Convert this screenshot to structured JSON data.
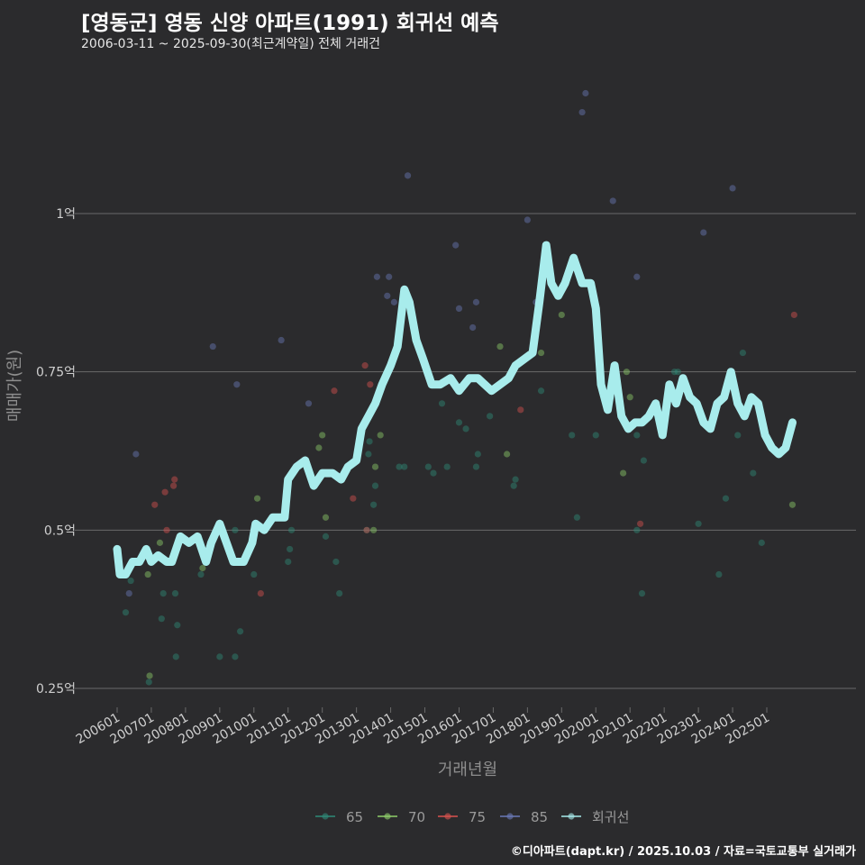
{
  "title": "[영동군] 영동 신양 아파트(1991) 회귀선 예측",
  "subtitle": "2006-03-11 ~ 2025-09-30(최근계약일) 전체 거래건",
  "credit": "©디아파트(dapt.kr) / 2025.10.03 / 자료=국토교통부 실거래가",
  "chart_data": {
    "type": "scatter",
    "xlabel": "거래년월",
    "ylabel": "매매가(원)",
    "xlim": [
      2005.75,
      2027.0
    ],
    "ylim": [
      0.22,
      1.3
    ],
    "yticks": [
      {
        "value": 0.25,
        "label": "0.25억"
      },
      {
        "value": 0.5,
        "label": "0.5억"
      },
      {
        "value": 0.75,
        "label": "0.75억"
      },
      {
        "value": 1.0,
        "label": "1억"
      }
    ],
    "xticks": [
      {
        "value": 2006.0,
        "label": "200601"
      },
      {
        "value": 2007.0,
        "label": "200701"
      },
      {
        "value": 2008.0,
        "label": "200801"
      },
      {
        "value": 2009.0,
        "label": "200901"
      },
      {
        "value": 2010.0,
        "label": "201001"
      },
      {
        "value": 2011.0,
        "label": "201101"
      },
      {
        "value": 2012.0,
        "label": "201201"
      },
      {
        "value": 2013.0,
        "label": "201301"
      },
      {
        "value": 2014.0,
        "label": "201401"
      },
      {
        "value": 2015.0,
        "label": "201501"
      },
      {
        "value": 2016.0,
        "label": "201601"
      },
      {
        "value": 2017.0,
        "label": "201701"
      },
      {
        "value": 2018.0,
        "label": "201801"
      },
      {
        "value": 2019.0,
        "label": "201901"
      },
      {
        "value": 2020.0,
        "label": "202001"
      },
      {
        "value": 2021.0,
        "label": "202101"
      },
      {
        "value": 2022.0,
        "label": "202201"
      },
      {
        "value": 2023.0,
        "label": "202301"
      },
      {
        "value": 2024.0,
        "label": "202401"
      },
      {
        "value": 2025.0,
        "label": "202501"
      }
    ],
    "legend": [
      {
        "name": "65",
        "color": "#2e8b78"
      },
      {
        "name": "70",
        "color": "#8fcf6a"
      },
      {
        "name": "75",
        "color": "#d9534f"
      },
      {
        "name": "85",
        "color": "#6a79b8"
      },
      {
        "name": "회귀선",
        "color": "#a8ecec"
      }
    ],
    "series": [
      {
        "name": "65",
        "color": "#2e8b78",
        "points": [
          [
            2006.25,
            0.37
          ],
          [
            2006.4,
            0.42
          ],
          [
            2006.93,
            0.26
          ],
          [
            2007.3,
            0.36
          ],
          [
            2007.35,
            0.4
          ],
          [
            2007.7,
            0.4
          ],
          [
            2007.72,
            0.3
          ],
          [
            2007.76,
            0.35
          ],
          [
            2008.45,
            0.43
          ],
          [
            2009.0,
            0.3
          ],
          [
            2009.45,
            0.3
          ],
          [
            2009.45,
            0.5
          ],
          [
            2009.6,
            0.34
          ],
          [
            2010.0,
            0.43
          ],
          [
            2011.0,
            0.45
          ],
          [
            2011.05,
            0.47
          ],
          [
            2011.1,
            0.5
          ],
          [
            2012.1,
            0.49
          ],
          [
            2012.4,
            0.45
          ],
          [
            2012.5,
            0.4
          ],
          [
            2013.3,
            0.5
          ],
          [
            2013.35,
            0.62
          ],
          [
            2013.38,
            0.64
          ],
          [
            2013.5,
            0.54
          ],
          [
            2013.55,
            0.57
          ],
          [
            2014.25,
            0.6
          ],
          [
            2014.4,
            0.6
          ],
          [
            2015.1,
            0.6
          ],
          [
            2015.25,
            0.59
          ],
          [
            2015.5,
            0.7
          ],
          [
            2015.65,
            0.6
          ],
          [
            2016.0,
            0.67
          ],
          [
            2016.2,
            0.66
          ],
          [
            2016.5,
            0.6
          ],
          [
            2016.55,
            0.62
          ],
          [
            2016.9,
            0.68
          ],
          [
            2017.6,
            0.57
          ],
          [
            2017.65,
            0.58
          ],
          [
            2018.4,
            0.72
          ],
          [
            2019.3,
            0.65
          ],
          [
            2019.45,
            0.52
          ],
          [
            2020.0,
            0.65
          ],
          [
            2021.2,
            0.5
          ],
          [
            2021.2,
            0.65
          ],
          [
            2021.4,
            0.61
          ],
          [
            2021.35,
            0.4
          ],
          [
            2022.3,
            0.75
          ],
          [
            2022.4,
            0.75
          ],
          [
            2023.0,
            0.51
          ],
          [
            2023.6,
            0.43
          ],
          [
            2023.8,
            0.55
          ],
          [
            2024.15,
            0.65
          ],
          [
            2024.3,
            0.78
          ],
          [
            2024.6,
            0.59
          ],
          [
            2024.85,
            0.48
          ]
        ]
      },
      {
        "name": "70",
        "color": "#8fcf6a",
        "points": [
          [
            2006.9,
            0.43
          ],
          [
            2006.95,
            0.27
          ],
          [
            2007.25,
            0.48
          ],
          [
            2008.5,
            0.44
          ],
          [
            2010.1,
            0.55
          ],
          [
            2011.9,
            0.63
          ],
          [
            2012.0,
            0.65
          ],
          [
            2012.1,
            0.52
          ],
          [
            2013.5,
            0.5
          ],
          [
            2013.55,
            0.6
          ],
          [
            2013.7,
            0.65
          ],
          [
            2017.2,
            0.79
          ],
          [
            2017.4,
            0.62
          ],
          [
            2018.4,
            0.78
          ],
          [
            2019.0,
            0.84
          ],
          [
            2020.8,
            0.59
          ],
          [
            2020.9,
            0.75
          ],
          [
            2021.0,
            0.71
          ],
          [
            2025.75,
            0.54
          ]
        ]
      },
      {
        "name": "75",
        "color": "#d9534f",
        "points": [
          [
            2007.1,
            0.54
          ],
          [
            2007.4,
            0.56
          ],
          [
            2007.45,
            0.5
          ],
          [
            2007.65,
            0.57
          ],
          [
            2007.68,
            0.58
          ],
          [
            2010.2,
            0.4
          ],
          [
            2012.35,
            0.72
          ],
          [
            2012.9,
            0.55
          ],
          [
            2013.25,
            0.76
          ],
          [
            2013.3,
            0.5
          ],
          [
            2013.4,
            0.73
          ],
          [
            2017.8,
            0.69
          ],
          [
            2021.3,
            0.51
          ],
          [
            2025.8,
            0.84
          ]
        ]
      },
      {
        "name": "85",
        "color": "#6a79b8",
        "points": [
          [
            2006.35,
            0.4
          ],
          [
            2006.55,
            0.62
          ],
          [
            2008.8,
            0.79
          ],
          [
            2009.5,
            0.73
          ],
          [
            2010.8,
            0.8
          ],
          [
            2011.6,
            0.7
          ],
          [
            2013.6,
            0.9
          ],
          [
            2013.9,
            0.87
          ],
          [
            2013.95,
            0.9
          ],
          [
            2014.1,
            0.86
          ],
          [
            2014.5,
            1.06
          ],
          [
            2015.9,
            0.95
          ],
          [
            2016.0,
            0.85
          ],
          [
            2016.4,
            0.82
          ],
          [
            2016.5,
            0.86
          ],
          [
            2018.0,
            0.99
          ],
          [
            2018.25,
            0.86
          ],
          [
            2019.6,
            1.16
          ],
          [
            2019.7,
            1.19
          ],
          [
            2020.5,
            1.02
          ],
          [
            2021.2,
            0.9
          ],
          [
            2023.15,
            0.97
          ],
          [
            2024.0,
            1.04
          ]
        ]
      }
    ],
    "regression": [
      [
        2006.0,
        0.47
      ],
      [
        2006.08,
        0.43
      ],
      [
        2006.25,
        0.43
      ],
      [
        2006.45,
        0.45
      ],
      [
        2006.65,
        0.45
      ],
      [
        2006.85,
        0.47
      ],
      [
        2007.0,
        0.45
      ],
      [
        2007.2,
        0.46
      ],
      [
        2007.45,
        0.45
      ],
      [
        2007.6,
        0.45
      ],
      [
        2007.85,
        0.49
      ],
      [
        2008.1,
        0.48
      ],
      [
        2008.35,
        0.49
      ],
      [
        2008.6,
        0.45
      ],
      [
        2008.75,
        0.48
      ],
      [
        2009.0,
        0.51
      ],
      [
        2009.2,
        0.48
      ],
      [
        2009.4,
        0.45
      ],
      [
        2009.7,
        0.45
      ],
      [
        2009.95,
        0.48
      ],
      [
        2010.05,
        0.51
      ],
      [
        2010.3,
        0.5
      ],
      [
        2010.55,
        0.52
      ],
      [
        2010.9,
        0.52
      ],
      [
        2011.0,
        0.58
      ],
      [
        2011.25,
        0.6
      ],
      [
        2011.5,
        0.61
      ],
      [
        2011.75,
        0.57
      ],
      [
        2012.0,
        0.59
      ],
      [
        2012.3,
        0.59
      ],
      [
        2012.55,
        0.58
      ],
      [
        2012.75,
        0.6
      ],
      [
        2013.0,
        0.61
      ],
      [
        2013.15,
        0.66
      ],
      [
        2013.35,
        0.68
      ],
      [
        2013.55,
        0.7
      ],
      [
        2013.75,
        0.73
      ],
      [
        2014.0,
        0.76
      ],
      [
        2014.2,
        0.79
      ],
      [
        2014.4,
        0.88
      ],
      [
        2014.55,
        0.86
      ],
      [
        2014.75,
        0.8
      ],
      [
        2014.95,
        0.77
      ],
      [
        2015.2,
        0.73
      ],
      [
        2015.45,
        0.73
      ],
      [
        2015.75,
        0.74
      ],
      [
        2016.0,
        0.72
      ],
      [
        2016.3,
        0.74
      ],
      [
        2016.55,
        0.74
      ],
      [
        2016.75,
        0.73
      ],
      [
        2016.95,
        0.72
      ],
      [
        2017.2,
        0.73
      ],
      [
        2017.45,
        0.74
      ],
      [
        2017.65,
        0.76
      ],
      [
        2017.9,
        0.77
      ],
      [
        2018.15,
        0.78
      ],
      [
        2018.35,
        0.86
      ],
      [
        2018.55,
        0.95
      ],
      [
        2018.7,
        0.89
      ],
      [
        2018.9,
        0.87
      ],
      [
        2019.1,
        0.89
      ],
      [
        2019.35,
        0.93
      ],
      [
        2019.6,
        0.89
      ],
      [
        2019.85,
        0.89
      ],
      [
        2020.0,
        0.85
      ],
      [
        2020.15,
        0.73
      ],
      [
        2020.35,
        0.69
      ],
      [
        2020.55,
        0.76
      ],
      [
        2020.75,
        0.68
      ],
      [
        2020.95,
        0.66
      ],
      [
        2021.15,
        0.67
      ],
      [
        2021.35,
        0.67
      ],
      [
        2021.55,
        0.68
      ],
      [
        2021.75,
        0.7
      ],
      [
        2021.95,
        0.65
      ],
      [
        2022.15,
        0.73
      ],
      [
        2022.35,
        0.7
      ],
      [
        2022.55,
        0.74
      ],
      [
        2022.75,
        0.71
      ],
      [
        2022.95,
        0.7
      ],
      [
        2023.15,
        0.67
      ],
      [
        2023.35,
        0.66
      ],
      [
        2023.55,
        0.7
      ],
      [
        2023.75,
        0.71
      ],
      [
        2023.95,
        0.75
      ],
      [
        2024.15,
        0.7
      ],
      [
        2024.35,
        0.68
      ],
      [
        2024.55,
        0.71
      ],
      [
        2024.75,
        0.7
      ],
      [
        2024.95,
        0.65
      ],
      [
        2025.15,
        0.63
      ],
      [
        2025.35,
        0.62
      ],
      [
        2025.55,
        0.63
      ],
      [
        2025.75,
        0.67
      ]
    ]
  }
}
